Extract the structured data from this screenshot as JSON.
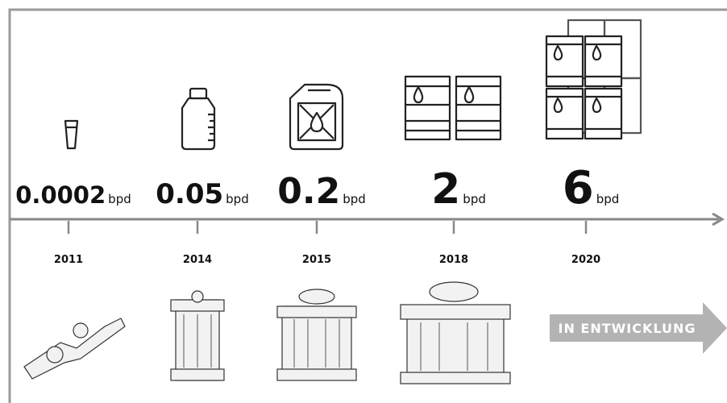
{
  "milestones": [
    {
      "value": "0.0002",
      "unit": "bpd",
      "year": "2011"
    },
    {
      "value": "0.05",
      "unit": "bpd",
      "year": "2014"
    },
    {
      "value": "0.2",
      "unit": "bpd",
      "year": "2015"
    },
    {
      "value": "2",
      "unit": "bpd",
      "year": "2018"
    },
    {
      "value": "6",
      "unit": "bpd",
      "year": "2020"
    }
  ],
  "next_step": "IN ENTWICKLUNG"
}
